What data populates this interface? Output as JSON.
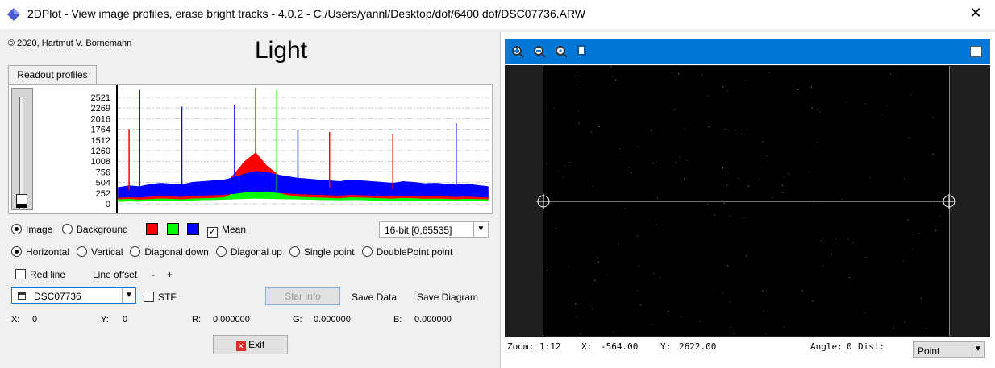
{
  "window": {
    "title": "2DPlot - View image profiles, erase bright tracks - 4.0.2 - C:/Users/yannl/Desktop/dof/6400 dof/DSC07736.ARW",
    "close_icon": "close-icon",
    "app_icon": "diamond-icon"
  },
  "left": {
    "copyright": "© 2020, Hartmut V. Bornemann",
    "heading": "Light",
    "tab": "Readout profiles",
    "source": {
      "image": "Image",
      "background": "Background",
      "selected": "Image"
    },
    "colors": {
      "red": "#ff0000",
      "green": "#00ff00",
      "blue": "#0000ff"
    },
    "mean": {
      "label": "Mean",
      "checked": true
    },
    "bitdepth": "16-bit [0,65535]",
    "modes": [
      "Horizontal",
      "Vertical",
      "Diagonal down",
      "Diagonal up",
      "Single point",
      "DoublePoint point"
    ],
    "mode_selected": "Horizontal",
    "redline": {
      "label": "Red line",
      "checked": false
    },
    "line_offset": {
      "label": "Line offset",
      "minus": "-",
      "plus": "+"
    },
    "file_select": "DSC07736",
    "stf": {
      "label": "STF",
      "checked": false
    },
    "star_info": "Star info",
    "save_data": "Save Data",
    "save_diagram": "Save Diagram",
    "readout": {
      "x_label": "X:",
      "x": "0",
      "y_label": "Y:",
      "y": "0",
      "r_label": "R:",
      "r": "0.000000",
      "g_label": "G:",
      "g": "0.000000",
      "b_label": "B:",
      "b": "0.000000"
    },
    "exit": "Exit"
  },
  "chart_data": {
    "type": "line",
    "title": "",
    "xlabel": "",
    "ylabel": "",
    "yticks": [
      "2521",
      "2269",
      "2016",
      "1764",
      "1512",
      "1260",
      "1008",
      "756",
      "504",
      "252",
      "0"
    ],
    "ylim": [
      0,
      2750
    ],
    "grid": true,
    "series": [
      {
        "color": "#ff0000",
        "values": [
          300,
          320,
          280,
          310,
          350,
          330,
          300,
          340,
          360,
          380,
          420,
          700,
          1000,
          1200,
          900,
          700,
          550,
          450,
          420,
          400,
          380,
          360,
          420,
          400,
          380,
          360,
          340,
          380,
          360,
          330,
          350,
          320,
          300,
          330,
          310,
          300
        ]
      },
      {
        "color": "#00ff00",
        "values": [
          150,
          180,
          160,
          200,
          220,
          210,
          190,
          230,
          250,
          260,
          280,
          300,
          320,
          340,
          330,
          310,
          300,
          290,
          280,
          260,
          250,
          240,
          260,
          250,
          230,
          220,
          210,
          230,
          220,
          200,
          210,
          190,
          180,
          200,
          190,
          170
        ]
      },
      {
        "color": "#0000ff",
        "values": [
          380,
          420,
          400,
          450,
          480,
          460,
          440,
          500,
          520,
          540,
          560,
          620,
          700,
          760,
          740,
          680,
          640,
          600,
          580,
          560,
          540,
          520,
          560,
          540,
          520,
          500,
          480,
          520,
          500,
          470,
          480,
          460,
          440,
          460,
          430,
          400
        ]
      }
    ],
    "peaks": [
      {
        "series": 2,
        "i": 2,
        "v": 2700
      },
      {
        "series": 2,
        "i": 6,
        "v": 2300
      },
      {
        "series": 0,
        "i": 1,
        "v": 1764
      },
      {
        "series": 2,
        "i": 11,
        "v": 2350
      },
      {
        "series": 0,
        "i": 13,
        "v": 2750
      },
      {
        "series": 1,
        "i": 15,
        "v": 2700
      },
      {
        "series": 2,
        "i": 17,
        "v": 1764
      },
      {
        "series": 0,
        "i": 20,
        "v": 1700
      },
      {
        "series": 0,
        "i": 26,
        "v": 1650
      },
      {
        "series": 2,
        "i": 32,
        "v": 1900
      }
    ]
  },
  "viewer": {
    "tools": [
      "zoom-in-icon",
      "zoom-out-icon",
      "zoom-fit-icon",
      "stop-icon"
    ],
    "zoom_label": "Zoom:",
    "zoom": "1:12",
    "x_label": "X:",
    "x": "-564.00",
    "y_label": "Y:",
    "y": "2622.00",
    "angle_label": "Angle:",
    "angle": "0",
    "dist_label": "Dist:",
    "mode": "Point"
  }
}
